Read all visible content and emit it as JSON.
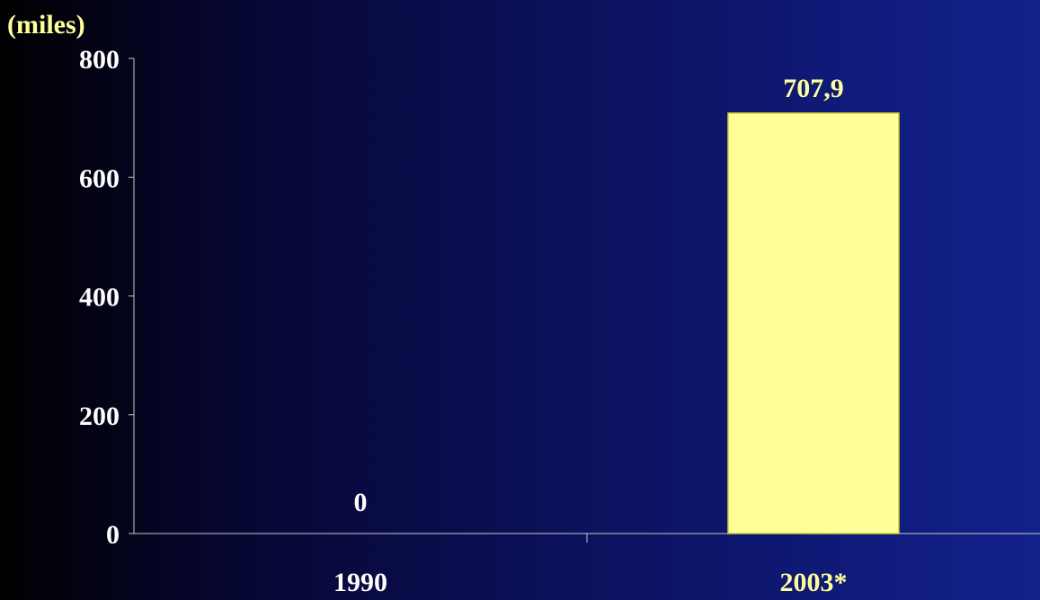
{
  "chart_data": {
    "type": "bar",
    "ylabel": "(miles)",
    "categories": [
      "1990",
      "2003*"
    ],
    "values": [
      0,
      707.9
    ],
    "value_labels": [
      "0",
      "707,9"
    ],
    "yticks": [
      "0",
      "200",
      "400",
      "600",
      "800"
    ],
    "ylim": [
      0,
      800
    ],
    "grid": false,
    "colors": {
      "bar": "#ffff99",
      "bar_edge": "#cccc33",
      "axis": "#c8c8c8",
      "label_white": "#ffffff",
      "label_yellow": "#ffff99"
    },
    "category_label_colors": [
      "#ffffff",
      "#ffff99"
    ],
    "value_label_colors": [
      "#ffffff",
      "#ffff99"
    ]
  }
}
